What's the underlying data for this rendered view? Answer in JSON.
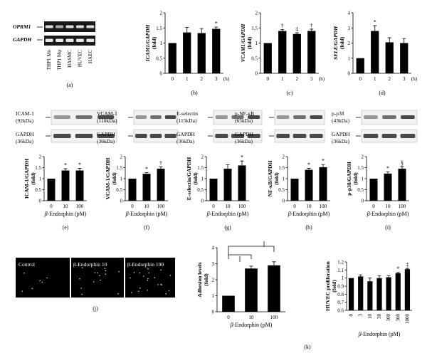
{
  "panel_a": {
    "gene_top": "OPRM1",
    "gene_bottom": "GAPDH",
    "lanes": [
      "THP1 Mo",
      "THP1 Mφ",
      "HASMC",
      "HUVEC",
      "HAEC"
    ],
    "label": "(a)"
  },
  "panel_e_labels": {
    "protein": "ICAM-1",
    "kda": "(92kDa)",
    "ctrl": "GAPDH",
    "ctrl_kda": "(36kDa)"
  },
  "panel_f_labels": {
    "protein": "VCAM-1",
    "kda": "(110kDa)",
    "ctrl": "GAPDH",
    "ctrl_kda": "(36kDa)"
  },
  "panel_g_labels": {
    "protein": "E-selectin",
    "kda": "(115kDa)",
    "ctrl": "GAPDH",
    "ctrl_kda": "(36kDa)"
  },
  "panel_h_labels": {
    "protein": "p-NF-κB",
    "kda": "(65kDa)",
    "ctrl": "GAPDH",
    "ctrl_kda": "(36kDa)"
  },
  "panel_i_labels": {
    "protein": "p-p38",
    "kda": "(43kDa)",
    "ctrl": "GAPDH",
    "ctrl_kda": "(36kDa)"
  },
  "panel_j": {
    "labels": [
      "Control",
      "β-Endorphin 10",
      "β-Endorphin 100"
    ],
    "label": "(j)"
  },
  "panel_k_label": "(k)",
  "chart_data": [
    {
      "id": "b",
      "type": "bar",
      "panel_label": "(b)",
      "ylabel": "ICAM1/GAPDH (fold)",
      "categories": [
        "0",
        "1",
        "2",
        "3"
      ],
      "xunit": "(h)",
      "values": [
        1.0,
        1.35,
        1.33,
        1.47
      ],
      "errors": [
        0,
        0.17,
        0.15,
        0.06
      ],
      "ylim": [
        0,
        2
      ],
      "yticks": [
        "0",
        "0.5",
        "1",
        "1.5",
        "2"
      ],
      "marks": [
        "",
        "",
        "",
        "*"
      ]
    },
    {
      "id": "c",
      "type": "bar",
      "panel_label": "(c)",
      "ylabel": "VCAM1/GAPDH (fold)",
      "categories": [
        "0",
        "1",
        "2",
        "3"
      ],
      "xunit": "(h)",
      "values": [
        1.0,
        1.4,
        1.3,
        1.4
      ],
      "errors": [
        0,
        0.05,
        0.04,
        0.06
      ],
      "ylim": [
        0,
        2
      ],
      "yticks": [
        "0",
        "0.5",
        "1",
        "1.5",
        "2"
      ],
      "marks": [
        "",
        "†",
        "‡",
        "†"
      ]
    },
    {
      "id": "d",
      "type": "bar",
      "panel_label": "(d)",
      "ylabel": "SELE/GAPDH (fold)",
      "categories": [
        "0",
        "1",
        "2",
        "3"
      ],
      "xunit": "(h)",
      "values": [
        1.0,
        2.8,
        2.05,
        2.0
      ],
      "errors": [
        0,
        0.35,
        0.3,
        0.3
      ],
      "ylim": [
        0,
        4
      ],
      "yticks": [
        "0",
        "1",
        "2",
        "3",
        "4"
      ],
      "marks": [
        "",
        "*",
        "",
        ""
      ]
    },
    {
      "id": "e",
      "type": "bar",
      "panel_label": "(e)",
      "ylabel": "ICAM-1/GAPDH (fold)",
      "categories": [
        "0",
        "10",
        "100"
      ],
      "xlabel": "β-Endorphin (pM)",
      "values": [
        1.0,
        1.37,
        1.37
      ],
      "errors": [
        0,
        0.08,
        0.1
      ],
      "ylim": [
        0,
        2
      ],
      "yticks": [
        "0",
        "0.5",
        "1",
        "1.5",
        "2"
      ],
      "marks": [
        "",
        "*",
        "*"
      ]
    },
    {
      "id": "f",
      "type": "bar",
      "panel_label": "(f)",
      "ylabel": "VCAM-1/GAPDH (fold)",
      "categories": [
        "0",
        "10",
        "100"
      ],
      "xlabel": "β-Endorphin (pM)",
      "values": [
        1.0,
        1.22,
        1.45
      ],
      "errors": [
        0,
        0.05,
        0.08
      ],
      "ylim": [
        0,
        2
      ],
      "yticks": [
        "0",
        "0.5",
        "1",
        "1.5",
        "2"
      ],
      "marks": [
        "",
        "*",
        "†"
      ]
    },
    {
      "id": "g",
      "type": "bar",
      "panel_label": "(g)",
      "ylabel": "E-selectin/GAPDH (fold)",
      "categories": [
        "0",
        "10",
        "100"
      ],
      "xlabel": "β-Endorphin (pM)",
      "values": [
        1.0,
        1.45,
        1.6
      ],
      "errors": [
        0,
        0.18,
        0.2
      ],
      "ylim": [
        0,
        2
      ],
      "yticks": [
        "0",
        "0.5",
        "1",
        "1.5",
        "2"
      ],
      "marks": [
        "",
        "",
        "*"
      ]
    },
    {
      "id": "h",
      "type": "bar",
      "panel_label": "(h)",
      "ylabel": "NF-κB/GAPDH (fold)",
      "categories": [
        "0",
        "10",
        "100"
      ],
      "xlabel": "β-Endorphin (pM)",
      "values": [
        1.0,
        1.4,
        1.52
      ],
      "errors": [
        0,
        0.07,
        0.12
      ],
      "ylim": [
        0,
        2
      ],
      "yticks": [
        "0",
        "0.5",
        "1",
        "1.5",
        "2"
      ],
      "marks": [
        "",
        "*",
        "*"
      ]
    },
    {
      "id": "i",
      "type": "bar",
      "panel_label": "(i)",
      "ylabel": "p-p38/GAPDH (fold)",
      "categories": [
        "0",
        "10",
        "100"
      ],
      "xlabel": "β-Endorphin (pM)",
      "values": [
        1.0,
        1.23,
        1.45
      ],
      "errors": [
        0,
        0.08,
        0.1
      ],
      "ylim": [
        0,
        2
      ],
      "yticks": [
        "0",
        "0.5",
        "1",
        "1.5",
        "2"
      ],
      "marks": [
        "",
        "*",
        "§"
      ]
    },
    {
      "id": "k1",
      "type": "bar",
      "ylabel": "Adhesion levels (fold)",
      "categories": [
        "0",
        "10",
        "100"
      ],
      "xlabel": "β-Endorphin (pM)",
      "values": [
        1.0,
        2.7,
        2.9
      ],
      "errors": [
        0,
        0.15,
        0.22
      ],
      "ylim": [
        0,
        4
      ],
      "yticks": [
        "0",
        "1",
        "2",
        "3",
        "4"
      ],
      "marks": [
        "",
        "",
        ""
      ],
      "brackets": [
        "||",
        "||"
      ]
    },
    {
      "id": "k2",
      "type": "bar",
      "ylabel": "HUVEC proliferation (fold)",
      "categories": [
        "0",
        "3",
        "10",
        "30",
        "100",
        "300",
        "1000"
      ],
      "xlabel": "β-Endorphin (pM)",
      "values": [
        1.0,
        1.02,
        0.96,
        1.0,
        1.01,
        1.06,
        1.11
      ],
      "errors": [
        0,
        0.02,
        0.04,
        0.03,
        0.02,
        0.01,
        0.01
      ],
      "ylim": [
        0.6,
        1.2
      ],
      "yticks": [
        "0.6",
        "0.7",
        "0.8",
        "0.9",
        "1",
        "1.1",
        "1.2"
      ],
      "marks": [
        "",
        "",
        "",
        "",
        "",
        "*",
        "‡"
      ]
    }
  ]
}
